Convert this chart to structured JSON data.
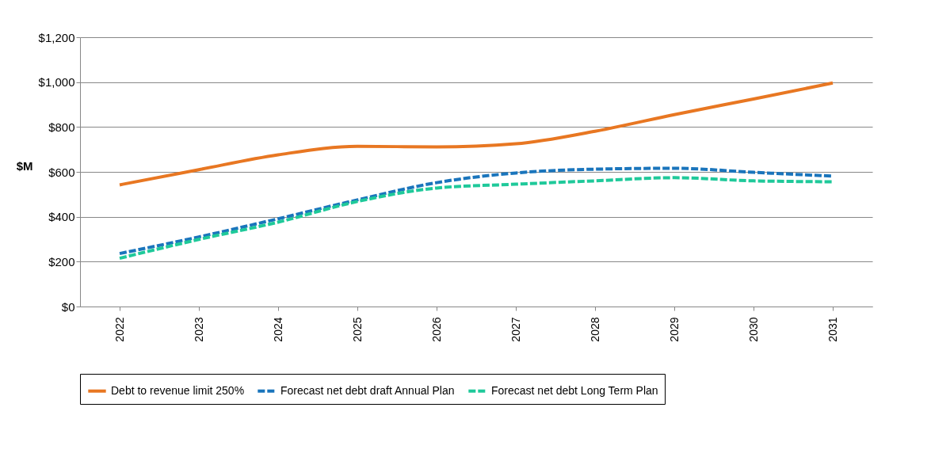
{
  "chart_data": {
    "type": "line",
    "ylabel": "$M",
    "categories": [
      "2022",
      "2023",
      "2024",
      "2025",
      "2026",
      "2027",
      "2028",
      "2029",
      "2030",
      "2031"
    ],
    "series": [
      {
        "name": "Debt to revenue limit 250%",
        "color": "#e87722",
        "line_style": "solid",
        "values": [
          542,
          610,
          676,
          714,
          711,
          725,
          781,
          855,
          925,
          996
        ]
      },
      {
        "name": "Forecast net debt draft Annual Plan",
        "color": "#1a75bc",
        "line_style": "dashed",
        "values": [
          236,
          310,
          391,
          475,
          552,
          595,
          612,
          616,
          598,
          581
        ]
      },
      {
        "name": "Forecast net debt Long Term Plan",
        "color": "#1fc99a",
        "line_style": "dashed",
        "values": [
          215,
          299,
          376,
          468,
          528,
          545,
          560,
          574,
          560,
          556
        ]
      }
    ],
    "ylim": [
      0,
      1200
    ],
    "yticks": [
      {
        "value": 0,
        "label": "$0"
      },
      {
        "value": 200,
        "label": "$200"
      },
      {
        "value": 400,
        "label": "$400"
      },
      {
        "value": 600,
        "label": "$600"
      },
      {
        "value": 800,
        "label": "$800"
      },
      {
        "value": 1000,
        "label": "$1,000"
      },
      {
        "value": 1200,
        "label": "$1,200"
      }
    ],
    "grid": "y",
    "legend": "bottom"
  }
}
